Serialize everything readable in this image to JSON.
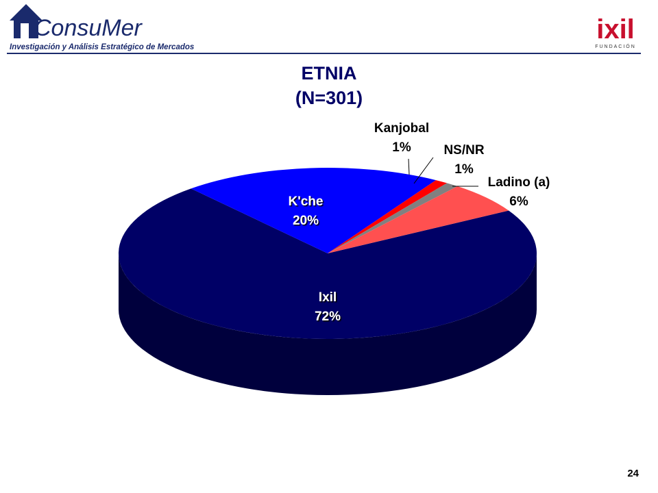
{
  "header": {
    "brand": "ConsuMer",
    "tagline": "Investigación y Análisis Estratégico de Mercados",
    "partner": "ixil",
    "partner_sub": "FUNDACIÓN"
  },
  "page_number": "24",
  "chart_data": {
    "type": "pie3d",
    "title": "ETNIA",
    "subtitle": "(N=301)",
    "categories": [
      "Ixil",
      "K'che",
      "Kanjobal",
      "NS/NR",
      "Ladino (a)"
    ],
    "values": [
      72,
      20,
      1,
      1,
      6
    ],
    "value_labels": [
      "72%",
      "20%",
      "1%",
      "1%",
      "6%"
    ],
    "colors": [
      "#000066",
      "#0000ff",
      "#ff0000",
      "#808080",
      "#ff5050"
    ]
  }
}
